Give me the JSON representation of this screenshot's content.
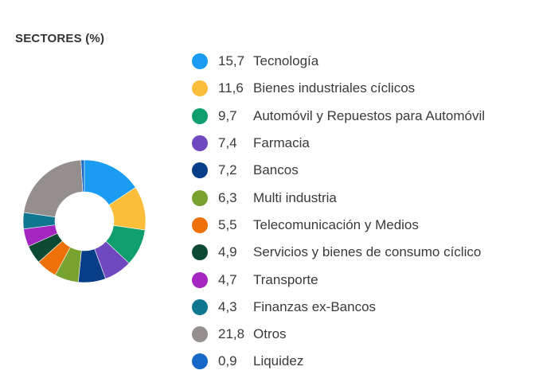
{
  "chart_data": {
    "type": "pie",
    "variant": "donut",
    "title": "SECTORES (%)",
    "categories": [
      "Tecnología",
      "Bienes industriales cíclicos",
      "Automóvil y Repuestos para Automóvil",
      "Farmacia",
      "Bancos",
      "Multi industria",
      "Telecomunicación y Medios",
      "Servicios y bienes de consumo cíclico",
      "Transporte",
      "Finanzas ex-Bancos",
      "Otros",
      "Liquidez"
    ],
    "values": [
      15.7,
      11.6,
      9.7,
      7.4,
      7.2,
      6.3,
      5.5,
      4.9,
      4.7,
      4.3,
      21.8,
      0.9
    ],
    "value_labels": [
      "15,7",
      "11,6",
      "9,7",
      "7,4",
      "7,2",
      "6,3",
      "5,5",
      "4,9",
      "4,7",
      "4,3",
      "21,8",
      "0,9"
    ],
    "colors": [
      "#1a9cf2",
      "#fbbd3a",
      "#0f9e6e",
      "#7048c0",
      "#083e87",
      "#78a22f",
      "#ee7008",
      "#0c4a33",
      "#a426c0",
      "#0f7890",
      "#948e8c",
      "#1568c6"
    ],
    "legend_position": "right"
  }
}
